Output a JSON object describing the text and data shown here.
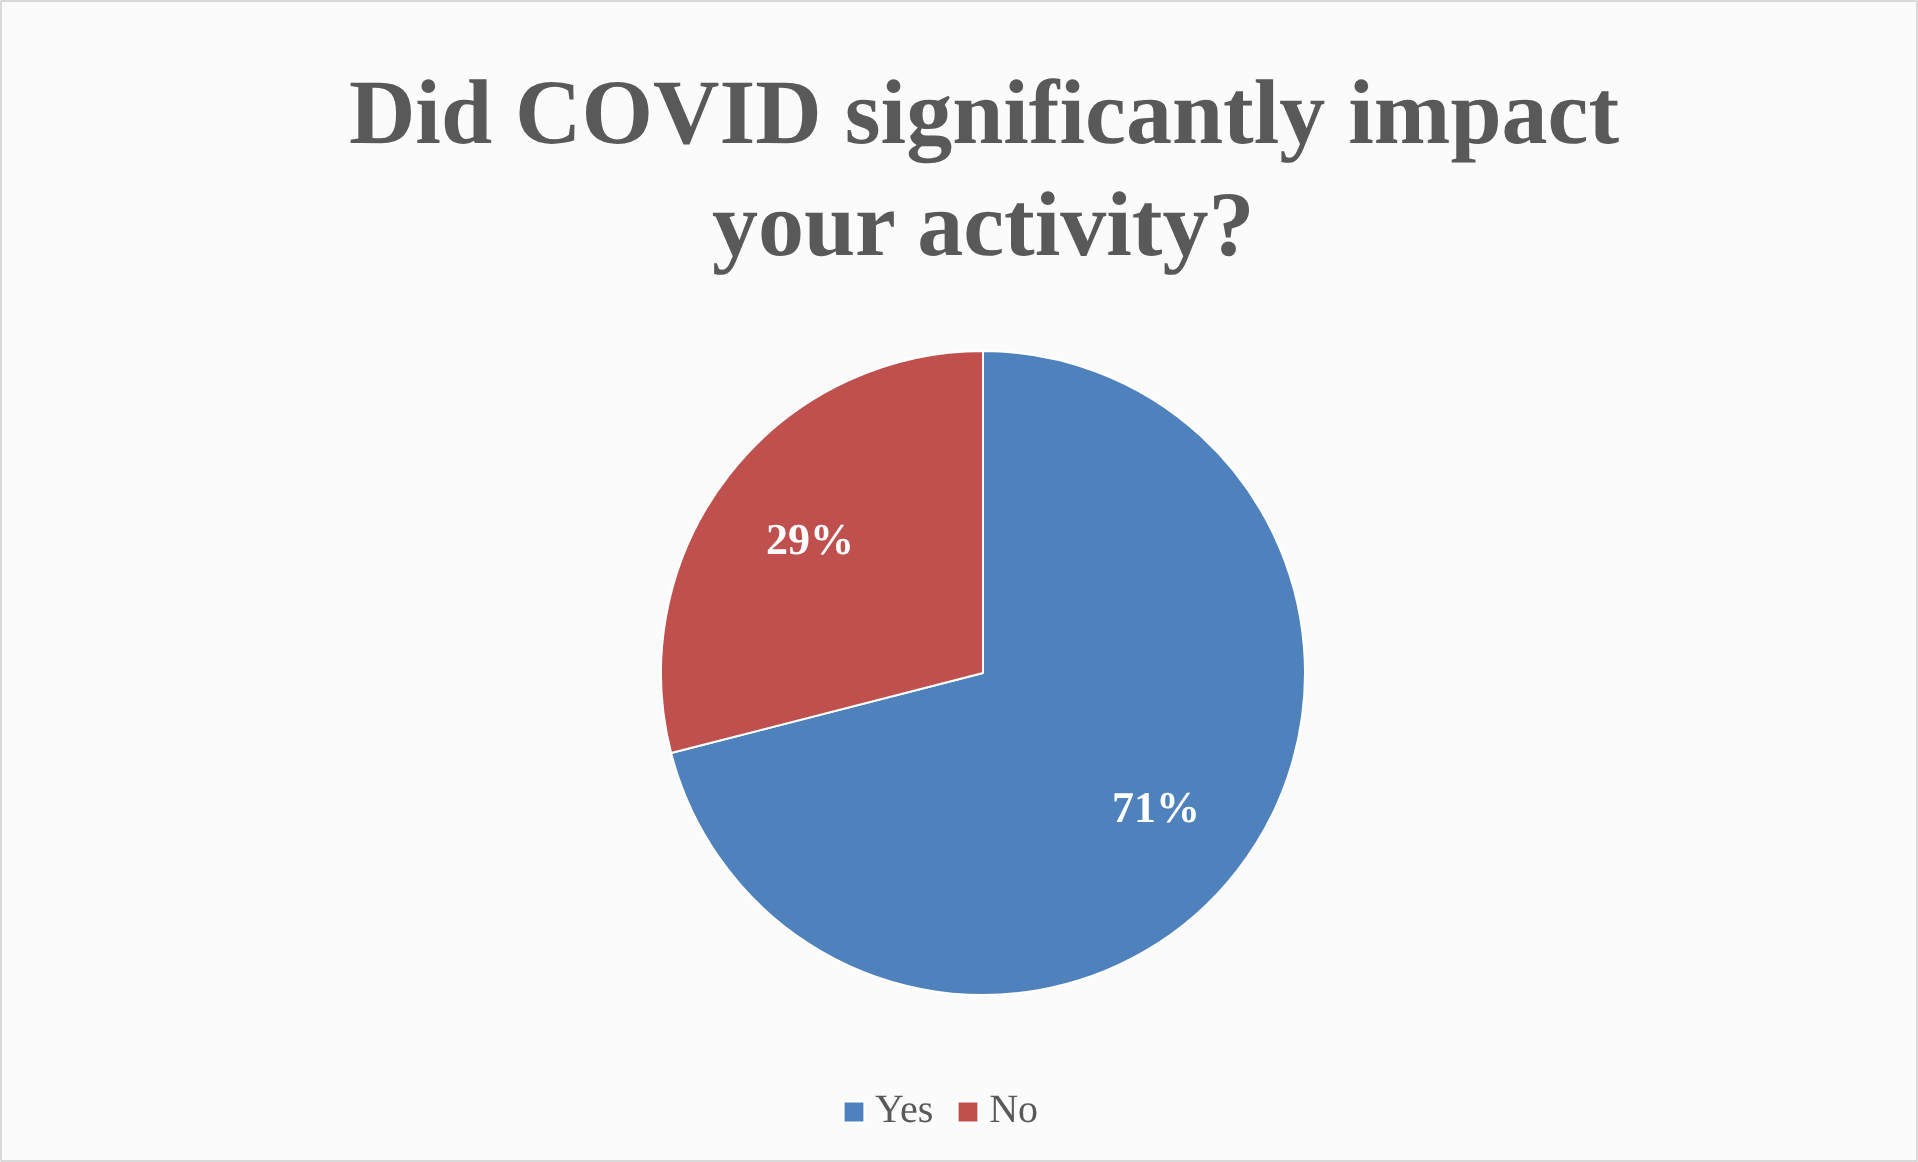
{
  "chart_data": {
    "type": "pie",
    "title": "Did COVID significantly impact\nyour activity?",
    "categories": [
      "Yes",
      "No"
    ],
    "values": [
      71,
      29
    ],
    "colors": [
      "#4f81bd",
      "#c0504d"
    ],
    "value_labels": [
      "71%",
      "29%"
    ],
    "legend": "bottom"
  }
}
